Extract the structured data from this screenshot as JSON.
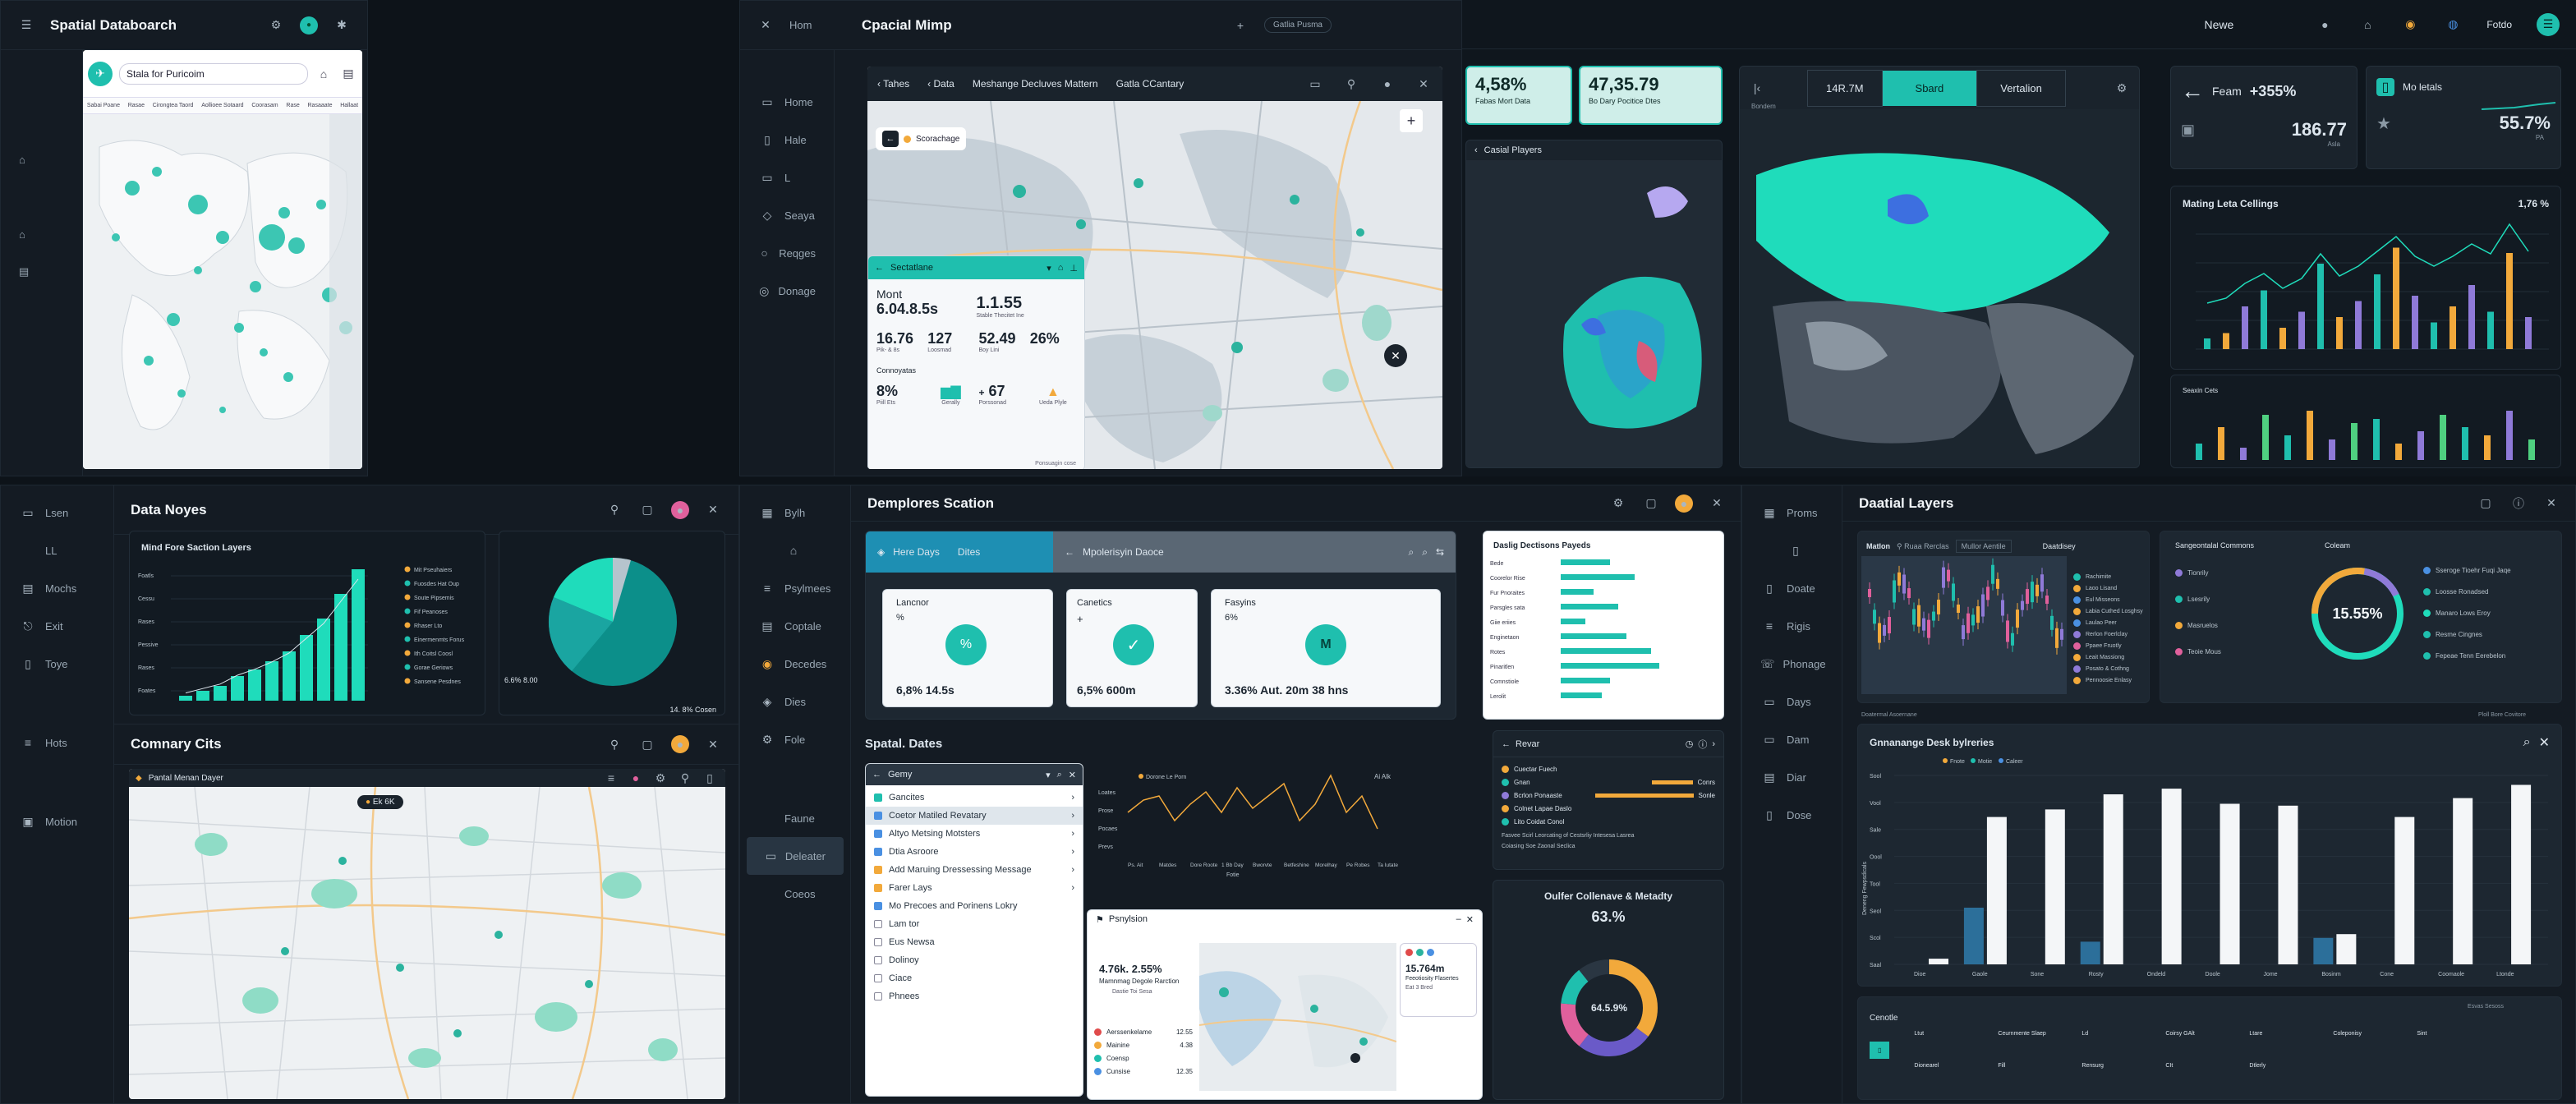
{
  "colors": {
    "teal": "#1fbfae",
    "bg": "#0d1319",
    "panel": "#141b23",
    "amber": "#f2a93b",
    "purple": "#8f7ad8",
    "pink": "#e0609c"
  },
  "p1": {
    "title": "Spatial Databoarch",
    "search": "Stala for Puricoim",
    "tabs": [
      "Sabai Poane",
      "Rasae",
      "Cirongtea Taord",
      "Aollioee Sotaard",
      "Coorasam",
      "Rase",
      "Rasaaate",
      "Hallaat"
    ],
    "rail": [
      "⌂",
      "⌂",
      "▤"
    ]
  },
  "p2": {
    "rail_title": "Hom",
    "title": "Cpacial Mimp",
    "tag": "Gatlia Pusma",
    "rail": [
      "Home",
      "Hale",
      "L",
      "Seaya",
      "Reqges",
      "Donage"
    ],
    "mapbar": {
      "a": "Tahes",
      "b": "Data",
      "c": "Meshange Decluves Mattern",
      "d": "Gatla CCantary"
    },
    "chip": "Scorachage",
    "stats": {
      "title": "Sectatlane",
      "a_label": "Mont",
      "a": "6.04.8.5s",
      "b": "1.1.55",
      "b_label": "Stable   Thecitet Ine",
      "r2": [
        {
          "v": "16.76",
          "l": "Pik- & 8s"
        },
        {
          "v": "127",
          "l": "Loosmad"
        },
        {
          "v": "52.49",
          "l": "Boy Lini"
        },
        {
          "v": "26%",
          "l": ""
        }
      ],
      "sub": "Connoyatas",
      "r3": [
        {
          "v": "8%",
          "l": "Piill  Ets"
        },
        {
          "v": "",
          "l": "Gerally"
        },
        {
          "v": "67",
          "l": "Porssonad"
        },
        {
          "v": "",
          "l": "Ueda Plyle"
        }
      ],
      "plus": "+",
      "footer": "Ponsuagin cose"
    }
  },
  "p3": {
    "user": "Newe",
    "user2": "Fotdo",
    "k1": {
      "v": "4,58%",
      "l": "Fabas Mort Data"
    },
    "k2": {
      "v": "47,35.79",
      "l": "Bo Dary   Pocitice Dtes"
    },
    "toggle": {
      "a": "14R.7M",
      "b": "Sbard",
      "c": "Vertalion"
    },
    "rail_label": "Bondem",
    "globe": "Casial Players",
    "k3": {
      "l": "Feam",
      "v": "+355%",
      "v2": "186.77",
      "s": "Asla"
    },
    "k4": {
      "l": "Mo letals",
      "v": "55.7%",
      "s": "PA"
    },
    "c1": {
      "title": "Mating Leta Cellings",
      "val": "1,76 %"
    },
    "c2": {
      "title": "Seaxin Cets"
    }
  },
  "p4": {
    "title": "Data Noyes",
    "rail": [
      "Lsen",
      "LL",
      "Mochs",
      "Exit",
      "Toye",
      "Hots",
      "",
      "Motion"
    ],
    "c1": {
      "title": "Mind Fore Saction Layers",
      "legend": [
        "Mit Pseuhaiers",
        "Fuosdes Hat Oup",
        "Soute Pipsemis",
        "Fif Peanoses",
        "Rhaser Lto",
        "Einermenmts Forus",
        "Ith Coitsl Coosl",
        "Gorae Geriows",
        "Sansene Pesdnes"
      ],
      "ylab": [
        "Foatls",
        "Cessu",
        "Rases",
        "Pessive",
        "Rases",
        "Foates"
      ]
    },
    "pie": {
      "l": "6.6% 8.00",
      "r": "14. 8% Cosen"
    },
    "title2": "Comnary Cits",
    "maptitle": "Pantal Menan Dayer",
    "chip": "Ek  6K"
  },
  "p5": {
    "title": "Demplores Scation",
    "rail": [
      "Bylh",
      "",
      "Psylmees",
      "Coptale",
      "Decedes",
      "Dies",
      "Fole",
      "Faune",
      "Deleater",
      "Coeos"
    ],
    "tab1": "Here Days",
    "tab1b": "Dites",
    "tab2": "Mpolerisyin Daoce",
    "cards": [
      {
        "t": "Lancnor",
        "s": "%",
        "v": "6,8%  14.5s",
        "g": "%"
      },
      {
        "t": "Canetics",
        "s": "+",
        "v": "6,5%   600m",
        "g": "✓"
      },
      {
        "t": "Fasyins",
        "s": "6%",
        "v": "3.36%   Aut. 20m  38 hns",
        "g": "M"
      }
    ],
    "bars": {
      "title": "Daslig Dectisons Payeds",
      "labels": [
        "Bede",
        "Coorelor Rise",
        "Fur Pnoraites",
        "Parsgles sata",
        "Giie eriies",
        "Enginetaon",
        "Rotes",
        "Pinaritlen",
        "Comnstiole",
        "Lerolit"
      ]
    },
    "spatial": "Spatal. Dates",
    "menu": {
      "title": "Gemy",
      "items": [
        "Gancites",
        "Coetor Matiled Revatary",
        "Altyo Metsing Motsters",
        "Dtia Asroore",
        "Add Maruing Dressessing Message",
        "Farer Lays",
        "Mo Precoes and Porinens Lokry",
        "Lam tor",
        "Eus Newsa",
        "Dolinoy",
        "Ciace",
        "Phnees"
      ]
    },
    "line": {
      "legend": "Dorone Le Porn",
      "yl": [
        "Loates",
        "Prose",
        "Pocaes",
        "Prevs"
      ],
      "xl": [
        "Ps. Ait",
        "Matdes",
        "Dore Roote",
        "1 Bb Day",
        "Bworvte",
        "Betfeshine",
        "Morelhay",
        "Pe Robes",
        "Ta Iutate"
      ],
      "xtitle": "Fotie",
      "ann": "Ai Alk"
    },
    "pop": {
      "title": "Psnylsion",
      "v1": "4.76k. 2.55%",
      "l1": "Mamnmag Degole Rarction",
      "l2": "Dastie Toi Sesa",
      "v2": "15.764m",
      "l3": "Feeotiosity Flasertes",
      "l4": "Eat 3 Bred",
      "leg": [
        {
          "t": "Aerssenkelame",
          "v": "12.55"
        },
        {
          "t": "Mainine",
          "v": "4.38"
        },
        {
          "t": "Coensp",
          "v": ""
        },
        {
          "t": "Cunsise",
          "v": "12.35"
        }
      ]
    },
    "rank": {
      "title": "Revar",
      "rows": [
        {
          "t": "Cuectar Fuech",
          "v": ""
        },
        {
          "t": "Gnan",
          "v": "Conrs"
        },
        {
          "t": "Bcrlon Ponaaste",
          "v": "Sonle"
        },
        {
          "t": "Colnet Lapae Daslo",
          "v": ""
        },
        {
          "t": "Lito Coidat Conol",
          "v": ""
        }
      ],
      "f1": "Fasvee Scirl Leorcating of Cestsrliy Intesesa Lasrea",
      "f2": "Coiasing Soe Zaonal Seclica"
    },
    "donut": {
      "title": "Oulfer Collenave & Metadty",
      "val": "63.%",
      "center": "64.5.9%"
    }
  },
  "p6": {
    "rail": [
      "Proms",
      "",
      "Doate",
      "Rigis",
      "Phonage",
      "Days",
      "Dam",
      "Diar",
      "Dose"
    ],
    "title": "Daatial Layers",
    "cand": {
      "title": "Matlon",
      "b1": "Ruaa Rerclas",
      "b2": "Mullor Aentile",
      "legend": [
        "Rachimite",
        "Laoo Lisand",
        "Eul Misseons",
        "Labia Cuthed Losghsy",
        "Laulao Peer",
        "Rerlon Foerlclay",
        "Ppaee Fruotly",
        "Leait Massiong",
        "Posato & Cothng",
        "Pennoosie Enlasy"
      ],
      "side": "Daatdisey"
    },
    "donut": {
      "title": "Sangeontalal Commons",
      "sub": "Coleam",
      "val": "15.55%",
      "legendR": [
        "Sseroge Tioehr Fuqi Jaqe",
        "Loosse Ronadsed",
        "Manaro Lows Eroy",
        "Resme Cingnes",
        "Fepeae Tenn Eerebelon"
      ],
      "legendL": [
        "Tionrily",
        "Lsesrily",
        "Masruelos",
        "Teoie Mous"
      ]
    },
    "bar": {
      "title": "Gnnanange Desk bylreries",
      "legend": [
        "Fnote",
        "Motie",
        "Caleer"
      ],
      "cats": [
        "Dioe",
        "Gaole",
        "Sone",
        "Rosty",
        "Ondeld",
        "Doole",
        "Jome",
        "Bosinm",
        "Cone",
        "Coomaole",
        "Ltonde"
      ],
      "yl": [
        "Sool",
        "Vool",
        "Sale",
        "Oool",
        "Tool",
        "Seol",
        "Scol",
        "Saal"
      ],
      "ytitle": "Deneng Fewpsdicals",
      "values": [
        3,
        78,
        82,
        90,
        93,
        85,
        84,
        16,
        78,
        88,
        95
      ],
      "values2": [
        0,
        30,
        0,
        12,
        0,
        0,
        0,
        14,
        0,
        0,
        0
      ],
      "ymax": 100,
      "top": "Doatermal Asoernane",
      "topR": "Ploll Bore Covitore"
    },
    "bot": {
      "title": "Cenotle",
      "cols": [
        "Ltut",
        "Ceurnmente Slaep",
        "Ld",
        "Coirsy GAlt",
        "Ltare",
        "Coleponisy",
        "Sint",
        "Dionearel",
        "Fill",
        "Rensurg",
        "CIt",
        "Dtlerly"
      ],
      "tag": "Esvas Sesoss",
      "tag2": "Lloe"
    }
  }
}
